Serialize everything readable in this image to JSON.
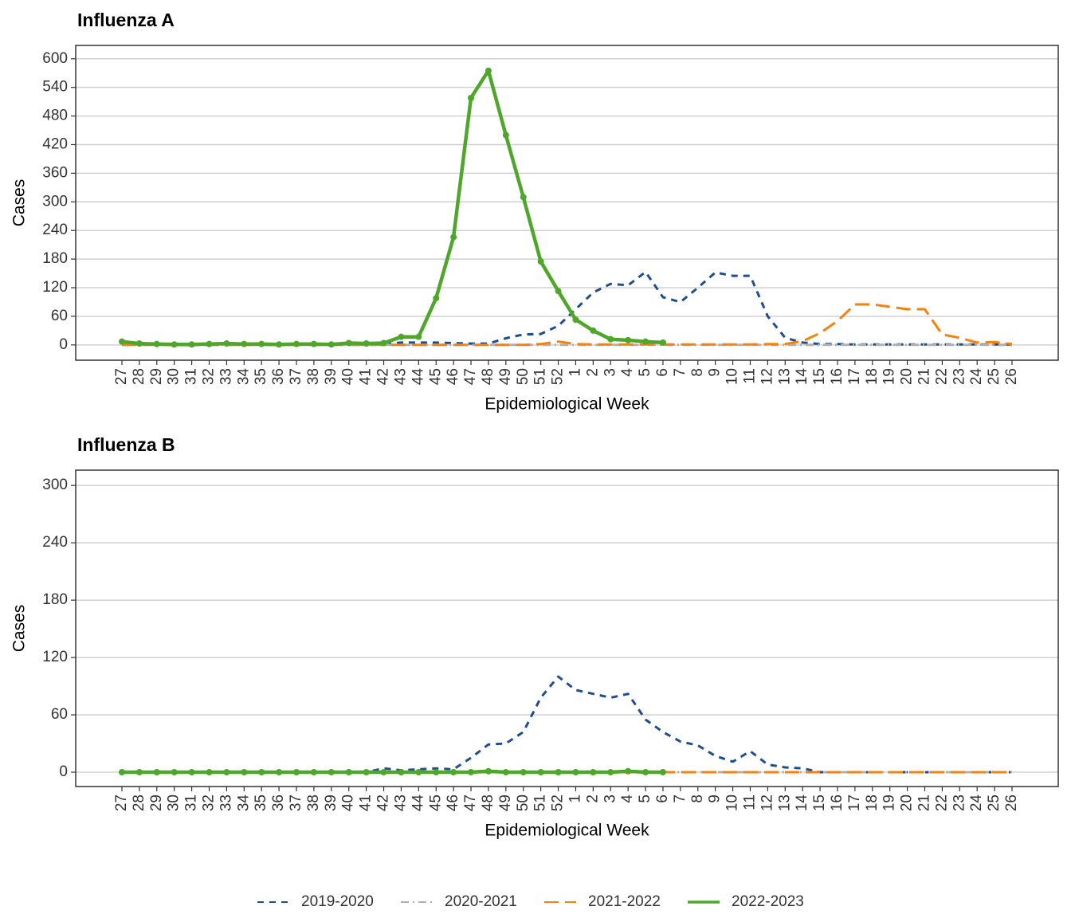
{
  "chart_data": [
    {
      "type": "line",
      "title": "Influenza A",
      "x_label": "Epidemiological Week",
      "y_label": "Cases",
      "categories": [
        "27",
        "28",
        "29",
        "30",
        "31",
        "32",
        "33",
        "34",
        "35",
        "36",
        "37",
        "38",
        "39",
        "40",
        "41",
        "42",
        "43",
        "44",
        "45",
        "46",
        "47",
        "48",
        "49",
        "50",
        "51",
        "52",
        "1",
        "2",
        "3",
        "4",
        "5",
        "6",
        "7",
        "8",
        "9",
        "10",
        "11",
        "12",
        "13",
        "14",
        "15",
        "16",
        "17",
        "18",
        "19",
        "20",
        "21",
        "22",
        "23",
        "24",
        "25",
        "26"
      ],
      "ylim": [
        -32,
        628
      ],
      "yticks": [
        0,
        60,
        120,
        180,
        240,
        300,
        360,
        420,
        480,
        540,
        600
      ],
      "grid": true,
      "legend": "bottom",
      "series": [
        {
          "name": "2019-2020",
          "color": "#1f4e8c",
          "values": [
            2,
            2,
            2,
            2,
            2,
            2,
            2,
            2,
            2,
            2,
            2,
            2,
            2,
            2,
            2,
            3,
            5,
            5,
            5,
            4,
            3,
            3,
            14,
            22,
            23,
            40,
            75,
            110,
            128,
            125,
            153,
            100,
            90,
            120,
            152,
            145,
            145,
            60,
            15,
            5,
            2,
            2,
            1,
            1,
            1,
            1,
            1,
            1,
            1,
            1,
            1,
            1
          ]
        },
        {
          "name": "2020-2021",
          "color": "#b0b0b0",
          "values": [
            0,
            0,
            0,
            0,
            0,
            0,
            0,
            0,
            0,
            0,
            0,
            0,
            0,
            0,
            0,
            0,
            0,
            0,
            0,
            0,
            0,
            0,
            0,
            0,
            0,
            0,
            0,
            0,
            0,
            0,
            0,
            0,
            0,
            0,
            0,
            0,
            0,
            0,
            0,
            0,
            0,
            0,
            0,
            0,
            0,
            0,
            0,
            0,
            0,
            0,
            0,
            0
          ]
        },
        {
          "name": "2021-2022",
          "color": "#f5820f",
          "values": [
            0,
            0,
            0,
            0,
            0,
            0,
            0,
            0,
            0,
            0,
            0,
            0,
            0,
            0,
            0,
            0,
            0,
            0,
            0,
            0,
            0,
            0,
            0,
            0,
            2,
            7,
            2,
            1,
            1,
            1,
            1,
            1,
            1,
            1,
            1,
            1,
            1,
            2,
            2,
            8,
            25,
            50,
            85,
            85,
            80,
            75,
            75,
            22,
            15,
            5,
            6,
            2
          ]
        },
        {
          "name": "2022-2023",
          "color": "#4ea72a",
          "values": [
            7,
            3,
            2,
            1,
            1,
            2,
            3,
            2,
            2,
            1,
            2,
            2,
            1,
            4,
            3,
            4,
            17,
            17,
            98,
            226,
            518,
            575,
            440,
            310,
            175,
            113,
            53,
            30,
            12,
            10,
            7,
            5,
            null,
            null,
            null,
            null,
            null,
            null,
            null,
            null,
            null,
            null,
            null,
            null,
            null,
            null,
            null,
            null,
            null,
            null,
            null,
            null
          ]
        }
      ]
    },
    {
      "type": "line",
      "title": "Influenza B",
      "x_label": "Epidemiological Week",
      "y_label": "Cases",
      "categories": [
        "27",
        "28",
        "29",
        "30",
        "31",
        "32",
        "33",
        "34",
        "35",
        "36",
        "37",
        "38",
        "39",
        "40",
        "41",
        "42",
        "43",
        "44",
        "45",
        "46",
        "47",
        "48",
        "49",
        "50",
        "51",
        "52",
        "1",
        "2",
        "3",
        "4",
        "5",
        "6",
        "7",
        "8",
        "9",
        "10",
        "11",
        "12",
        "13",
        "14",
        "15",
        "16",
        "17",
        "18",
        "19",
        "20",
        "21",
        "22",
        "23",
        "24",
        "25",
        "26"
      ],
      "ylim": [
        -15,
        316
      ],
      "yticks": [
        0,
        60,
        120,
        180,
        240,
        300
      ],
      "grid": true,
      "series": [
        {
          "name": "2019-2020",
          "color": "#1f4e8c",
          "values": [
            0,
            0,
            0,
            0,
            0,
            0,
            0,
            0,
            0,
            0,
            0,
            0,
            0,
            0,
            0,
            4,
            2,
            3,
            4,
            3,
            15,
            29,
            30,
            42,
            78,
            100,
            86,
            82,
            78,
            82,
            55,
            42,
            32,
            28,
            17,
            11,
            22,
            8,
            5,
            4,
            0,
            0,
            0,
            0,
            0,
            0,
            0,
            0,
            0,
            0,
            0,
            0
          ]
        },
        {
          "name": "2020-2021",
          "color": "#b0b0b0",
          "values": [
            0,
            0,
            0,
            0,
            0,
            0,
            0,
            0,
            0,
            0,
            0,
            0,
            0,
            0,
            0,
            0,
            0,
            0,
            0,
            0,
            0,
            0,
            0,
            0,
            0,
            0,
            0,
            0,
            0,
            0,
            0,
            0,
            0,
            0,
            0,
            0,
            0,
            0,
            0,
            0,
            0,
            0,
            0,
            0,
            0,
            0,
            0,
            0,
            0,
            0,
            0,
            0
          ]
        },
        {
          "name": "2021-2022",
          "color": "#f5820f",
          "values": [
            0,
            0,
            0,
            0,
            0,
            0,
            0,
            0,
            0,
            0,
            0,
            0,
            0,
            0,
            0,
            0,
            0,
            0,
            0,
            0,
            0,
            0,
            0,
            0,
            0,
            0,
            0,
            0,
            0,
            0,
            0,
            0,
            0,
            0,
            0,
            0,
            0,
            0,
            0,
            0,
            0,
            0,
            0,
            0,
            0,
            0,
            0,
            0,
            0,
            0,
            0,
            0
          ]
        },
        {
          "name": "2022-2023",
          "color": "#4ea72a",
          "values": [
            0,
            0,
            0,
            0,
            0,
            0,
            0,
            0,
            0,
            0,
            0,
            0,
            0,
            0,
            0,
            0,
            0,
            0,
            0,
            0,
            0,
            1,
            0,
            0,
            0,
            0,
            0,
            0,
            0,
            1,
            0,
            0,
            null,
            null,
            null,
            null,
            null,
            null,
            null,
            null,
            null,
            null,
            null,
            null,
            null,
            null,
            null,
            null,
            null,
            null,
            null,
            null
          ]
        }
      ]
    }
  ]
}
